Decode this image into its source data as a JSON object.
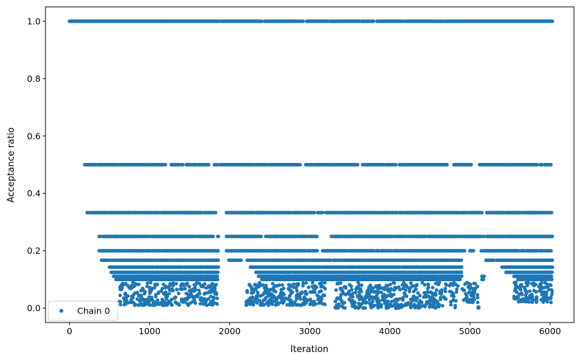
{
  "chart_data": {
    "type": "scatter",
    "title": "",
    "xlabel": "Iteration",
    "ylabel": "Acceptance ratio",
    "xlim": [
      -300,
      6300
    ],
    "ylim": [
      -0.05,
      1.05
    ],
    "xticks": [
      0,
      1000,
      2000,
      3000,
      4000,
      5000,
      6000
    ],
    "yticks": [
      0.0,
      0.2,
      0.4,
      0.6,
      0.8,
      1.0
    ],
    "xtick_labels": [
      "0",
      "1000",
      "2000",
      "3000",
      "4000",
      "5000",
      "6000"
    ],
    "ytick_labels": [
      "0.0",
      "0.2",
      "0.4",
      "0.6",
      "0.8",
      "1.0"
    ],
    "grid": false,
    "legend_position": "lower-left",
    "marker_color": "#1f77b4",
    "series": [
      {
        "name": "Chain 0",
        "bands": [
          {
            "y": 1.0,
            "segments": [
              [
                0,
                1880
              ],
              [
                1900,
                2410
              ],
              [
                2440,
                2920
              ],
              [
                2960,
                3800
              ],
              [
                3840,
                4180
              ],
              [
                4200,
                4680
              ],
              [
                4700,
                5280
              ],
              [
                5300,
                6030
              ]
            ]
          },
          {
            "y": 0.5,
            "segments": [
              [
                190,
                1200
              ],
              [
                1270,
                1740
              ],
              [
                1800,
                1850
              ],
              [
                1880,
                2880
              ],
              [
                2950,
                3600
              ],
              [
                3660,
                4080
              ],
              [
                4120,
                4720
              ],
              [
                4800,
                5060
              ],
              [
                5120,
                6020
              ]
            ]
          },
          {
            "y": 0.333,
            "segments": [
              [
                220,
                1660
              ],
              [
                1690,
                1830
              ],
              [
                1960,
                3060
              ],
              [
                3100,
                3170
              ],
              [
                3200,
                4950
              ],
              [
                4970,
                5160
              ],
              [
                5210,
                6020
              ]
            ]
          },
          {
            "y": 0.25,
            "segments": [
              [
                370,
                1800
              ],
              [
                1850,
                1860
              ],
              [
                1960,
                2400
              ],
              [
                2450,
                3100
              ],
              [
                3260,
                5180
              ],
              [
                5210,
                6030
              ]
            ]
          },
          {
            "y": 0.2,
            "segments": [
              [
                370,
                1860
              ],
              [
                1960,
                3100
              ],
              [
                3160,
                4940
              ],
              [
                5000,
                5050
              ],
              [
                5140,
                6030
              ]
            ]
          },
          {
            "y": 0.167,
            "segments": [
              [
                400,
                1860
              ],
              [
                1990,
                2150
              ],
              [
                2210,
                4900
              ],
              [
                5200,
                6030
              ]
            ]
          },
          {
            "y": 0.143,
            "segments": [
              [
                500,
                1860
              ],
              [
                2250,
                4900
              ],
              [
                5400,
                6030
              ]
            ]
          },
          {
            "y": 0.125,
            "segments": [
              [
                520,
                1860
              ],
              [
                2320,
                4900
              ],
              [
                5450,
                6030
              ]
            ]
          },
          {
            "y": 0.111,
            "segments": [
              [
                550,
                1850
              ],
              [
                2360,
                4900
              ],
              [
                5150,
                5180
              ],
              [
                5550,
                6030
              ]
            ]
          },
          {
            "y": 0.1,
            "segments": [
              [
                580,
                1850
              ],
              [
                2400,
                4880
              ],
              [
                5150,
                5180
              ],
              [
                5600,
                6030
              ]
            ]
          }
        ],
        "clusters": [
          {
            "x": [
              620,
              1850
            ],
            "y": [
              0.01,
              0.09
            ]
          },
          {
            "x": [
              2200,
              3200
            ],
            "y": [
              0.01,
              0.09
            ]
          },
          {
            "x": [
              3300,
              4850
            ],
            "y": [
              0.0,
              0.09
            ]
          },
          {
            "x": [
              4900,
              5100
            ],
            "y": [
              0.02,
              0.09
            ]
          },
          {
            "x": [
              5100,
              5110
            ],
            "y": [
              0.0,
              0.005
            ]
          },
          {
            "x": [
              5550,
              6030
            ],
            "y": [
              0.02,
              0.09
            ]
          }
        ]
      }
    ]
  }
}
